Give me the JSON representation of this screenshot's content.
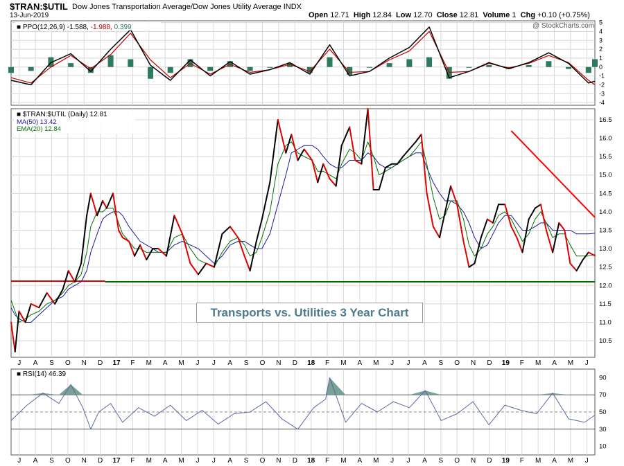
{
  "header": {
    "symbol": "$TRAN:$UTIL",
    "description": "Dow Jones Transportation Average/Dow Jones Utility Average  INDX",
    "date": "13-Jun-2019",
    "open_label": "Open",
    "open": "12.71",
    "high_label": "High",
    "high": "12.84",
    "low_label": "Low",
    "low": "12.70",
    "close_label": "Close",
    "close": "12.81",
    "volume_label": "Volume",
    "volume": "1",
    "chg_label": "Chg",
    "chg": "+0.10 (+0.75%)",
    "watermark": "@ StockCharts.com"
  },
  "annotation": "Transports vs. Utilities 3 Year Chart",
  "colors": {
    "price_up": "#000000",
    "price_down": "#e00000",
    "ma50": "#1a1aa0",
    "ema20": "#007000",
    "support": "#007000",
    "resistance": "#e00000",
    "trendline": "#ff0000",
    "ppo": "#000000",
    "signal": "#c00000",
    "hist": "#2e7a5f",
    "rsi": "#5a6aa0",
    "rsi_fill": "#7aa09a",
    "grid": "#d8d8d8"
  },
  "chart_data": [
    {
      "type": "line",
      "title": "PPO(12,26,9)",
      "legend": [
        "PPO(12,26,9)",
        "-1.588",
        "-1.988",
        "0.399"
      ],
      "y_ticks": [
        5,
        4,
        3,
        2,
        1,
        0,
        -1,
        -2,
        -3,
        -4
      ],
      "ylim": [
        -4.3,
        5.2
      ],
      "x": [
        0,
        25,
        50,
        75,
        100,
        125,
        150,
        175,
        200,
        225,
        250,
        275,
        300,
        325,
        350,
        375,
        400,
        425,
        450,
        475,
        500,
        525,
        550,
        575,
        600,
        625,
        650,
        675,
        700,
        725,
        733
      ],
      "ppo": [
        -1.5,
        -2.0,
        0.5,
        1.5,
        -0.5,
        2.0,
        4.2,
        0.2,
        -1.5,
        0.8,
        -1.0,
        0.6,
        -0.8,
        -0.3,
        0.5,
        -0.8,
        2.5,
        -1.0,
        -0.5,
        1.0,
        2.2,
        4.5,
        -1.2,
        -0.5,
        0.5,
        -0.2,
        0.5,
        1.6,
        0.4,
        -1.8,
        -1.6
      ],
      "signal": [
        -1.2,
        -1.8,
        0.0,
        1.3,
        -0.2,
        1.4,
        3.8,
        0.8,
        -1.2,
        0.4,
        -0.8,
        0.3,
        -0.6,
        -0.3,
        0.3,
        -0.5,
        2.0,
        -0.6,
        -0.5,
        0.8,
        1.8,
        4.0,
        -0.6,
        -0.5,
        0.4,
        -0.1,
        0.4,
        1.3,
        0.5,
        -1.5,
        -2.0
      ],
      "hist_note": "histogram = ppo - signal"
    },
    {
      "type": "line",
      "title": "$TRAN:$UTIL (Daily)",
      "legend": [
        {
          "name": "$TRAN:$UTIL (Daily)",
          "value": "12.81"
        },
        {
          "name": "MA(50)",
          "value": "13.42"
        },
        {
          "name": "EMA(20)",
          "value": "12.84"
        }
      ],
      "y_ticks": [
        "16.5",
        "16.0",
        "15.5",
        "15.0",
        "14.5",
        "14.0",
        "13.5",
        "13.0",
        "12.5",
        "12.0",
        "11.5",
        "11.0",
        "10.5"
      ],
      "ylim": [
        10.05,
        16.8
      ],
      "x_labels": [
        "J",
        "A",
        "S",
        "O",
        "N",
        "D",
        "17",
        "F",
        "M",
        "A",
        "M",
        "J",
        "J",
        "A",
        "S",
        "O",
        "N",
        "D",
        "18",
        "F",
        "M",
        "A",
        "M",
        "J",
        "J",
        "A",
        "S",
        "O",
        "N",
        "D",
        "19",
        "F",
        "M",
        "A",
        "M",
        "J"
      ],
      "x": [
        0,
        5,
        10,
        18,
        25,
        35,
        45,
        55,
        65,
        72,
        80,
        88,
        95,
        100,
        108,
        115,
        120,
        128,
        135,
        140,
        148,
        155,
        162,
        170,
        178,
        185,
        195,
        205,
        215,
        225,
        235,
        245,
        255,
        265,
        275,
        285,
        293,
        300,
        308,
        315,
        325,
        335,
        345,
        352,
        360,
        368,
        378,
        385,
        392,
        400,
        408,
        415,
        425,
        432,
        440,
        448,
        455,
        462,
        470,
        478,
        485,
        492,
        500,
        508,
        515,
        522,
        530,
        538,
        545,
        552,
        560,
        568,
        575,
        582,
        590,
        598,
        605,
        612,
        620,
        628,
        635,
        642,
        650,
        658,
        665,
        672,
        680,
        688,
        695,
        702,
        710,
        718,
        725,
        733
      ],
      "close": [
        11.0,
        10.2,
        11.3,
        11.0,
        11.5,
        11.4,
        11.8,
        11.5,
        11.9,
        12.4,
        12.1,
        12.6,
        13.9,
        14.5,
        13.9,
        14.3,
        14.1,
        14.5,
        13.5,
        13.3,
        13.2,
        12.8,
        13.1,
        12.7,
        13.0,
        13.0,
        12.8,
        13.9,
        13.4,
        12.6,
        12.3,
        12.6,
        12.5,
        13.4,
        13.6,
        13.3,
        12.8,
        12.4,
        13.2,
        13.8,
        14.8,
        16.5,
        15.6,
        16.1,
        15.4,
        15.7,
        15.4,
        14.8,
        15.3,
        14.9,
        14.7,
        15.8,
        16.3,
        15.4,
        15.3,
        16.8,
        14.6,
        14.6,
        15.2,
        15.3,
        15.3,
        15.5,
        15.7,
        15.9,
        16.1,
        14.5,
        13.6,
        13.3,
        14.0,
        14.7,
        14.2,
        13.2,
        12.5,
        12.6,
        13.3,
        13.8,
        13.7,
        14.2,
        14.2,
        13.6,
        13.3,
        12.9,
        13.8,
        14.1,
        14.2,
        13.5,
        12.9,
        13.7,
        13.5,
        12.6,
        12.4,
        12.7,
        12.9,
        12.81
      ],
      "ma50": [
        11.4,
        11.2,
        11.1,
        11.0,
        11.0,
        11.2,
        11.4,
        11.6,
        11.7,
        11.9,
        12.0,
        12.1,
        12.4,
        12.9,
        13.4,
        13.8,
        13.9,
        14.0,
        14.0,
        13.9,
        13.6,
        13.4,
        13.2,
        13.1,
        13.0,
        12.9,
        12.9,
        13.1,
        13.2,
        13.1,
        13.0,
        12.8,
        12.6,
        12.8,
        13.1,
        13.2,
        13.2,
        13.1,
        13.0,
        13.0,
        13.4,
        14.2,
        15.0,
        15.6,
        15.7,
        15.8,
        15.8,
        15.7,
        15.5,
        15.3,
        15.2,
        15.2,
        15.4,
        15.4,
        15.4,
        15.6,
        15.5,
        15.3,
        15.2,
        15.2,
        15.3,
        15.4,
        15.5,
        15.6,
        15.6,
        15.2,
        14.8,
        14.5,
        14.3,
        14.3,
        14.2,
        14.0,
        13.7,
        13.3,
        13.0,
        13.1,
        13.4,
        13.7,
        13.9,
        13.9,
        13.7,
        13.5,
        13.5,
        13.6,
        13.7,
        13.7,
        13.5,
        13.5,
        13.5,
        13.5,
        13.4,
        13.4,
        13.4,
        13.42
      ],
      "ema20": [
        11.6,
        11.3,
        11.0,
        11.1,
        11.2,
        11.3,
        11.5,
        11.6,
        11.8,
        12.0,
        12.1,
        12.3,
        12.9,
        13.6,
        14.0,
        14.0,
        14.1,
        14.1,
        13.7,
        13.4,
        13.2,
        13.0,
        13.0,
        12.9,
        12.9,
        12.9,
        12.9,
        13.3,
        13.4,
        13.0,
        12.7,
        12.6,
        12.5,
        12.9,
        13.2,
        13.3,
        13.1,
        12.8,
        12.9,
        13.3,
        14.0,
        15.3,
        15.8,
        15.9,
        15.6,
        15.5,
        15.4,
        15.1,
        15.1,
        15.0,
        14.9,
        15.3,
        15.7,
        15.6,
        15.4,
        15.9,
        15.5,
        15.0,
        15.1,
        15.2,
        15.3,
        15.4,
        15.5,
        15.7,
        15.9,
        15.3,
        14.4,
        13.8,
        13.9,
        14.3,
        14.3,
        13.8,
        13.1,
        12.8,
        13.0,
        13.4,
        13.6,
        13.9,
        14.0,
        13.8,
        13.5,
        13.2,
        13.4,
        13.8,
        14.0,
        13.7,
        13.3,
        13.4,
        13.4,
        13.1,
        12.8,
        12.8,
        12.8,
        12.84
      ],
      "support_level": 12.1,
      "trendline": [
        {
          "x": 628,
          "y": 16.2
        },
        {
          "x": 733,
          "y": 13.85
        }
      ]
    },
    {
      "type": "area",
      "title": "RSI(14)",
      "legend": [
        "RSI(14)",
        "46.39"
      ],
      "y_ticks": [
        90,
        70,
        50,
        30,
        10
      ],
      "ylim": [
        0,
        100
      ],
      "reference_lines": [
        70,
        50,
        30
      ],
      "x": [
        0,
        20,
        40,
        60,
        75,
        90,
        100,
        110,
        125,
        140,
        160,
        180,
        200,
        220,
        240,
        260,
        280,
        300,
        320,
        340,
        360,
        380,
        395,
        400,
        420,
        440,
        460,
        480,
        500,
        520,
        540,
        560,
        580,
        600,
        620,
        640,
        660,
        680,
        700,
        720,
        733
      ],
      "values": [
        40,
        58,
        72,
        60,
        82,
        55,
        30,
        50,
        60,
        38,
        55,
        45,
        58,
        40,
        52,
        36,
        48,
        50,
        62,
        42,
        30,
        55,
        65,
        90,
        38,
        60,
        50,
        62,
        55,
        75,
        40,
        48,
        62,
        35,
        58,
        52,
        48,
        72,
        42,
        38,
        46.39
      ]
    }
  ]
}
